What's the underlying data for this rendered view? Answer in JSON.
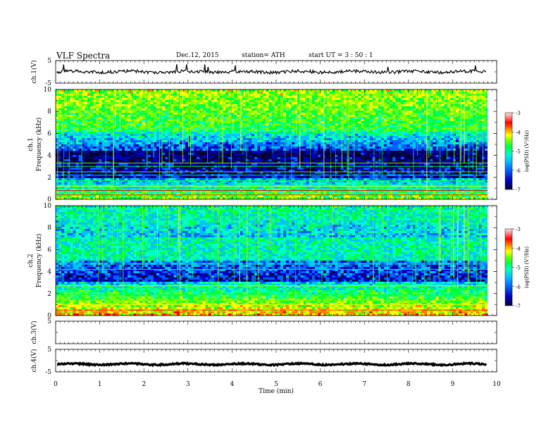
{
  "header": {
    "title": "VLF  Spectra",
    "date": "Dec.12, 2015",
    "station": "station= ATH",
    "start": "start  UT  =   3  : 50 : 1"
  },
  "chart_data": [
    {
      "type": "line",
      "name": "ch1-voltage",
      "ylabel": "ch.1(V)",
      "ylim": [
        -5,
        5
      ],
      "yticks": [
        "5",
        "-5"
      ],
      "xlim": [
        0,
        10
      ],
      "trace_level": 0
    },
    {
      "type": "heatmap",
      "name": "ch1-spectrogram",
      "ylabel": "ch.1\nFrequency  (kHz)",
      "ylim": [
        0,
        10
      ],
      "yticks": [
        "10",
        "8",
        "6",
        "4",
        "2",
        "0"
      ],
      "xlim": [
        0,
        9.8
      ],
      "colorbar": {
        "label": "log(PSD) (V²/Hz)",
        "range": [
          -7,
          -3
        ],
        "ticks": [
          "-3",
          "-4",
          "-5",
          "-6",
          "-7"
        ]
      }
    },
    {
      "type": "heatmap",
      "name": "ch2-spectrogram",
      "ylabel": "ch.2\nFrequency  (kHz)",
      "ylim": [
        0,
        10
      ],
      "yticks": [
        "10",
        "8",
        "6",
        "4",
        "2",
        "0"
      ],
      "xlim": [
        0,
        9.8
      ],
      "colorbar": {
        "label": "log(PSD) (V²/Hz)",
        "range": [
          -7,
          -3
        ],
        "ticks": [
          "-3",
          "-4",
          "-5",
          "-6",
          "-7"
        ]
      }
    },
    {
      "type": "line",
      "name": "ch3-voltage",
      "ylabel": "ch.3(V)",
      "ylim": [
        -5,
        5
      ],
      "yticks": [
        "5"
      ],
      "xlim": [
        0,
        10
      ]
    },
    {
      "type": "line",
      "name": "ch4-voltage",
      "ylabel": "ch.4(V)",
      "ylim": [
        -5,
        5
      ],
      "yticks": [
        "5",
        "-5"
      ],
      "xlim": [
        0,
        10
      ],
      "trace_level": -1.6
    }
  ],
  "xaxis": {
    "label": "Time  (min)",
    "ticks": [
      "0",
      "1",
      "2",
      "3",
      "4",
      "5",
      "6",
      "7",
      "8",
      "9",
      "10"
    ]
  },
  "colors": {
    "colormap": [
      "#000040",
      "#0000c0",
      "#0060ff",
      "#00c0ff",
      "#00ffc0",
      "#00ff40",
      "#80ff00",
      "#ffff00",
      "#ff8000",
      "#ff0000",
      "#ff8080",
      "#ffe0e0"
    ]
  }
}
